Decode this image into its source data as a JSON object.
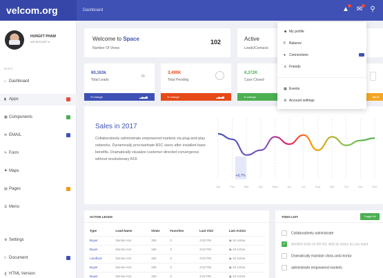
{
  "brand": "velcom.org",
  "breadcrumb": "Dashboard",
  "topbar_icons": [
    "bell-icon",
    "mail-icon",
    "search-icon"
  ],
  "user": {
    "name": "HUNGFT PHAM",
    "role": "WE BOGJIRT ▾"
  },
  "nav_section": "W ETC",
  "nav": [
    {
      "label": "Dashboard",
      "icon": "home-icon"
    },
    {
      "label": "Apps",
      "icon": "apps-icon",
      "badge_color": "#e74c3c"
    },
    {
      "label": "Components",
      "icon": "components-icon",
      "badge_color": "#4caf50"
    },
    {
      "label": "EMAIL",
      "icon": "email-icon",
      "badge_color": "#3f51b5"
    },
    {
      "label": "Form",
      "icon": "form-icon"
    },
    {
      "label": "Maps",
      "icon": "map-icon"
    },
    {
      "label": "Pages",
      "icon": "pages-icon",
      "badge_color": "#f39c12"
    },
    {
      "label": "Menu",
      "icon": "menu-icon"
    },
    {
      "label": "Settings",
      "icon": "gear-icon"
    },
    {
      "label": "Document",
      "icon": "document-icon",
      "badge_color": "#3f51b5"
    },
    {
      "label": "HTML Version",
      "icon": "html-icon"
    }
  ],
  "welcome": {
    "title_prefix": "Welcome to",
    "title_accent": "Space",
    "subtitle": "Number Of Views",
    "value": "102"
  },
  "active": {
    "title": "Active",
    "subtitle": "Leads/Contacts"
  },
  "stats": [
    {
      "value": "60,163k",
      "label": "Total Leads",
      "bar_label": "% change",
      "color": "#3f51b5",
      "icon": "paperclip-icon"
    },
    {
      "value": "3,490K",
      "label": "Total Pending",
      "bar_label": "% change",
      "color": "#e64a19",
      "icon": "compass-icon"
    },
    {
      "value": "8,372K",
      "label": "Case Closed",
      "bar_label": "% change",
      "color": "#4caf50",
      "icon": "clipboard-icon"
    },
    {
      "value": "",
      "label": "",
      "bar_label": "Ios.5",
      "color": "#f5a623",
      "icon": "bookmark-icon"
    }
  ],
  "sales": {
    "title": "Sales in 2017",
    "text": "Collaboratively administrate empowered markets via plug-and-play networks. Dynamically procrastinate B2C users after installed base benefits. Dramatically visualize customer directed convergence without revolutionary ROI."
  },
  "chart_data": {
    "type": "line",
    "categories": [
      "Jan",
      "Feb",
      "Mar",
      "Apr",
      "May",
      "Jun",
      "Jul",
      "Aug",
      "Sep",
      "Oct",
      "Nov",
      "Dec"
    ],
    "values": [
      75,
      66,
      40,
      48,
      70,
      58,
      73,
      48,
      70,
      56,
      64,
      68
    ],
    "annotation": "+8.7%",
    "highlight_category": "Feb",
    "ylim": [
      0,
      100
    ],
    "grid": true
  },
  "leads": {
    "title": "ACTIVE LEADS",
    "columns": [
      "Type",
      "Lead Name",
      "Views",
      "Favorites",
      "Last Visit",
      "Last Action"
    ],
    "rows": [
      [
        "Buyer",
        "Denise Ann",
        "150",
        "3",
        "3:22 PM",
        "◉ 10 Active"
      ],
      [
        "Buyer",
        "Denise Ann",
        "150",
        "3",
        "3:22 PM",
        "◉ 10 Active"
      ],
      [
        "Landlord",
        "Denise Ann",
        "150",
        "3",
        "3:22 PM",
        "◉ 10 Active"
      ],
      [
        "Buyer",
        "Denise Ann",
        "150",
        "3",
        "3:22 PM",
        "◉ 10 Active"
      ],
      [
        "Buyer",
        "Denise Ann",
        "150",
        "3",
        "3:22 PM",
        "◉ 10 Active"
      ]
    ]
  },
  "todo": {
    "title": "TODO LIST",
    "toggle_label": "Toggle All",
    "items": [
      {
        "text": "Collaboratively administrate",
        "checked": false
      },
      {
        "text": "Another todo on the list. Add as many as you want.",
        "checked": true
      },
      {
        "text": "Dramatically maintain clicks-and-mortar",
        "checked": false
      },
      {
        "text": "administrate empowered markets",
        "checked": false
      }
    ]
  },
  "dropdown": {
    "items": [
      {
        "label": "My profile",
        "icon": "user-icon"
      },
      {
        "label": "Balance",
        "icon": "euro-icon"
      },
      {
        "label": "Connections",
        "icon": "globe-icon",
        "badge": true
      },
      {
        "label": "Friends",
        "icon": "person-icon"
      },
      {
        "label": "Events",
        "icon": "calendar-icon"
      },
      {
        "label": "Account settings",
        "icon": "gear-icon"
      }
    ]
  }
}
